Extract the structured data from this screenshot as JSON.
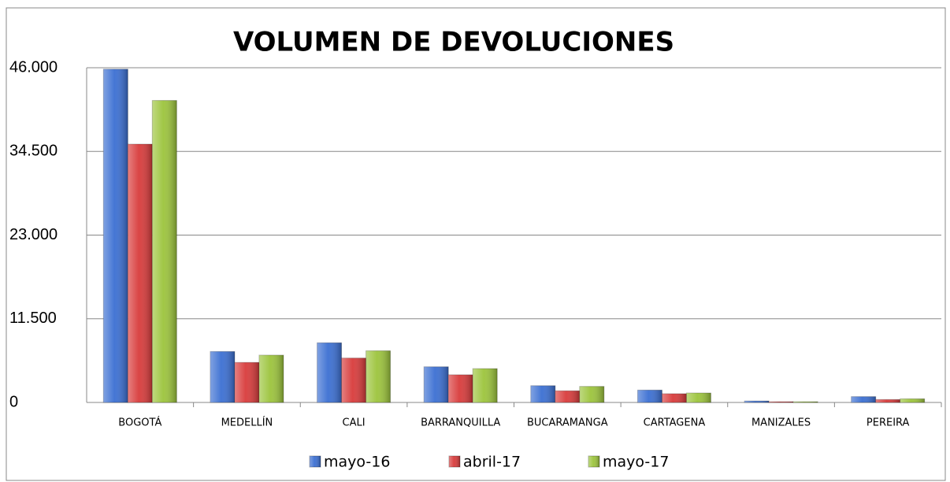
{
  "chart_data": {
    "type": "bar",
    "title": "VOLUMEN DE DEVOLUCIONES",
    "categories": [
      "BOGOTÁ",
      "MEDELLÍN",
      "CALI",
      "BARRANQUILLA",
      "BUCARAMANGA",
      "CARTAGENA",
      "MANIZALES",
      "PEREIRA"
    ],
    "series": [
      {
        "name": "mayo-16",
        "color": "#3b6fd2",
        "values": [
          45800,
          7000,
          8200,
          4900,
          2300,
          1700,
          200,
          800
        ]
      },
      {
        "name": "abril-17",
        "color": "#d83b3b",
        "values": [
          35500,
          5500,
          6100,
          3800,
          1600,
          1200,
          100,
          400
        ]
      },
      {
        "name": "mayo-17",
        "color": "#9cc43c",
        "values": [
          41500,
          6500,
          7100,
          4650,
          2200,
          1300,
          100,
          500
        ]
      }
    ],
    "ylim": [
      0,
      46000
    ],
    "yticks": [
      0,
      {
        "value": 11500,
        "label": "11.500"
      },
      {
        "value": 23000,
        "label": "23.000"
      },
      {
        "value": 34500,
        "label": "34.500"
      },
      {
        "value": 46000,
        "label": "46.000"
      }
    ],
    "grid": true,
    "legend": "bottom"
  }
}
